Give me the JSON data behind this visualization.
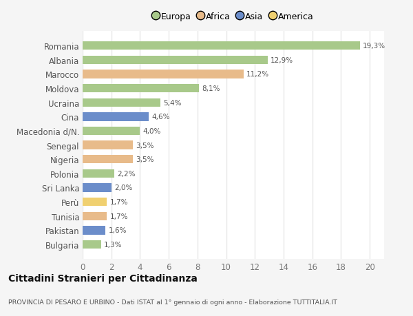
{
  "countries": [
    "Romania",
    "Albania",
    "Marocco",
    "Moldova",
    "Ucraina",
    "Cina",
    "Macedonia d/N.",
    "Senegal",
    "Nigeria",
    "Polonia",
    "Sri Lanka",
    "Perù",
    "Tunisia",
    "Pakistan",
    "Bulgaria"
  ],
  "values": [
    19.3,
    12.9,
    11.2,
    8.1,
    5.4,
    4.6,
    4.0,
    3.5,
    3.5,
    2.2,
    2.0,
    1.7,
    1.7,
    1.6,
    1.3
  ],
  "labels": [
    "19,3%",
    "12,9%",
    "11,2%",
    "8,1%",
    "5,4%",
    "4,6%",
    "4,0%",
    "3,5%",
    "3,5%",
    "2,2%",
    "2,0%",
    "1,7%",
    "1,7%",
    "1,6%",
    "1,3%"
  ],
  "continents": [
    "Europa",
    "Europa",
    "Africa",
    "Europa",
    "Europa",
    "Asia",
    "Europa",
    "Africa",
    "Africa",
    "Europa",
    "Asia",
    "America",
    "Africa",
    "Asia",
    "Europa"
  ],
  "colors": {
    "Europa": "#a8c98a",
    "Africa": "#e8bb8a",
    "Asia": "#6b8dca",
    "America": "#f0d070"
  },
  "legend_order": [
    "Europa",
    "Africa",
    "Asia",
    "America"
  ],
  "title": "Cittadini Stranieri per Cittadinanza",
  "subtitle": "PROVINCIA DI PESARO E URBINO - Dati ISTAT al 1° gennaio di ogni anno - Elaborazione TUTTITALIA.IT",
  "xlim": [
    0,
    21
  ],
  "xticks": [
    0,
    2,
    4,
    6,
    8,
    10,
    12,
    14,
    16,
    18,
    20
  ],
  "background_color": "#f5f5f5",
  "plot_bg_color": "#ffffff",
  "grid_color": "#e8e8e8",
  "bar_height": 0.6
}
